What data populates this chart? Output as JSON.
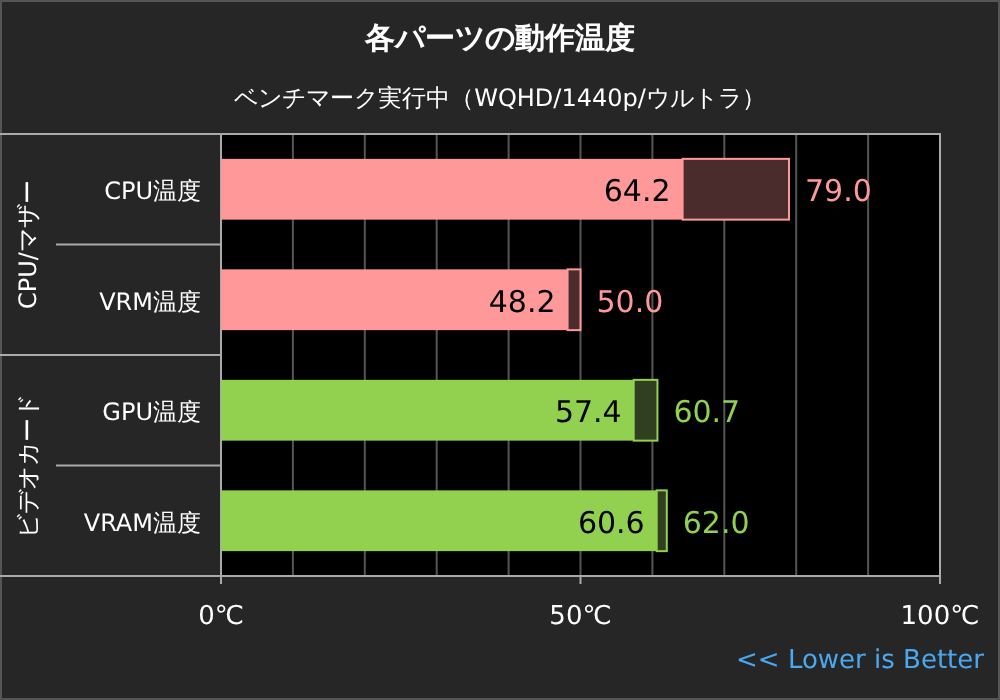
{
  "chart_data": {
    "type": "bar",
    "orientation": "horizontal",
    "stacked": true,
    "title": "各パーツの動作温度",
    "subtitle": "ベンチマーク実行中（WQHD/1440p/ウルトラ）",
    "categories": [
      "CPU温度",
      "VRM温度",
      "GPU温度",
      "VRAM温度"
    ],
    "series": [
      {
        "colors": [
          "#ff9999",
          "#ff9999",
          "#92d050",
          "#92d050"
        ],
        "values": [
          64.2,
          48.2,
          57.4,
          60.6
        ],
        "value_labels": [
          "64.2",
          "48.2",
          "57.4",
          "60.6"
        ]
      },
      {
        "colors": [
          "#4b2c2c",
          "#4b2c2c",
          "#2f3f1f",
          "#2f3f1f"
        ],
        "values": [
          14.8,
          1.8,
          3.3,
          1.4
        ]
      }
    ],
    "totals": [
      "79.0",
      "50.0",
      "60.7",
      "62.0"
    ],
    "xlim": [
      0,
      100
    ],
    "xticks": [
      {
        "value": 0,
        "label": "0℃"
      },
      {
        "value": 10,
        "label": null
      },
      {
        "value": 20,
        "label": null
      },
      {
        "value": 30,
        "label": null
      },
      {
        "value": 40,
        "label": null
      },
      {
        "value": 50,
        "label": "50℃"
      },
      {
        "value": 60,
        "label": null
      },
      {
        "value": 70,
        "label": null
      },
      {
        "value": 80,
        "label": null
      },
      {
        "value": 90,
        "label": null
      },
      {
        "value": 100,
        "label": "100℃"
      }
    ],
    "grid": "x",
    "annotations": [
      "CPU/マザー",
      "ビデオカード",
      "<< Lower is Better"
    ]
  }
}
